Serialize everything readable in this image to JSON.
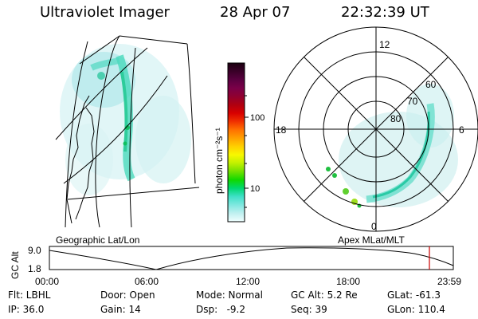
{
  "header": {
    "title": "Ultraviolet Imager",
    "date": "28 Apr 07",
    "time": "22:32:39 UT"
  },
  "colorbar": {
    "label": "photon cm⁻²s⁻¹",
    "ticks": [
      "100",
      "10"
    ],
    "colors": [
      "#1a0010",
      "#3a0028",
      "#5a0040",
      "#7a0048",
      "#900030",
      "#b00010",
      "#d80000",
      "#f03000",
      "#ff7000",
      "#ffa000",
      "#ffd000",
      "#f8f800",
      "#c0f000",
      "#70e000",
      "#10d800",
      "#00d870",
      "#40e0c8",
      "#80e8e0",
      "#c0f0f0",
      "#f0ffff"
    ]
  },
  "map_labels": {
    "left": "Geographic Lat/Lon",
    "right": "Apex MLat/MLT"
  },
  "polar": {
    "mlt_labels": [
      "12",
      "18",
      "6",
      "0"
    ],
    "lat_labels": [
      "60",
      "70",
      "80"
    ]
  },
  "timeline": {
    "ylabel": "GC Alt",
    "yticks": [
      "9.0",
      "1.8"
    ],
    "xticks": [
      "00:00",
      "06:00",
      "12:00",
      "18:00",
      "23:59"
    ],
    "marker_color": "#cc0000"
  },
  "info": {
    "flt": "Flt: LBHL",
    "door": "Door: Open",
    "mode": "Mode: Normal",
    "gcalt": "GC Alt: 5.2 Re",
    "glat": "GLat: -61.3",
    "ip": "IP: 36.0",
    "gain": "Gain: 14",
    "dsp": "Dsp:   -9.2",
    "seq": "Seq: 39",
    "glon": "GLon: 110.4"
  }
}
